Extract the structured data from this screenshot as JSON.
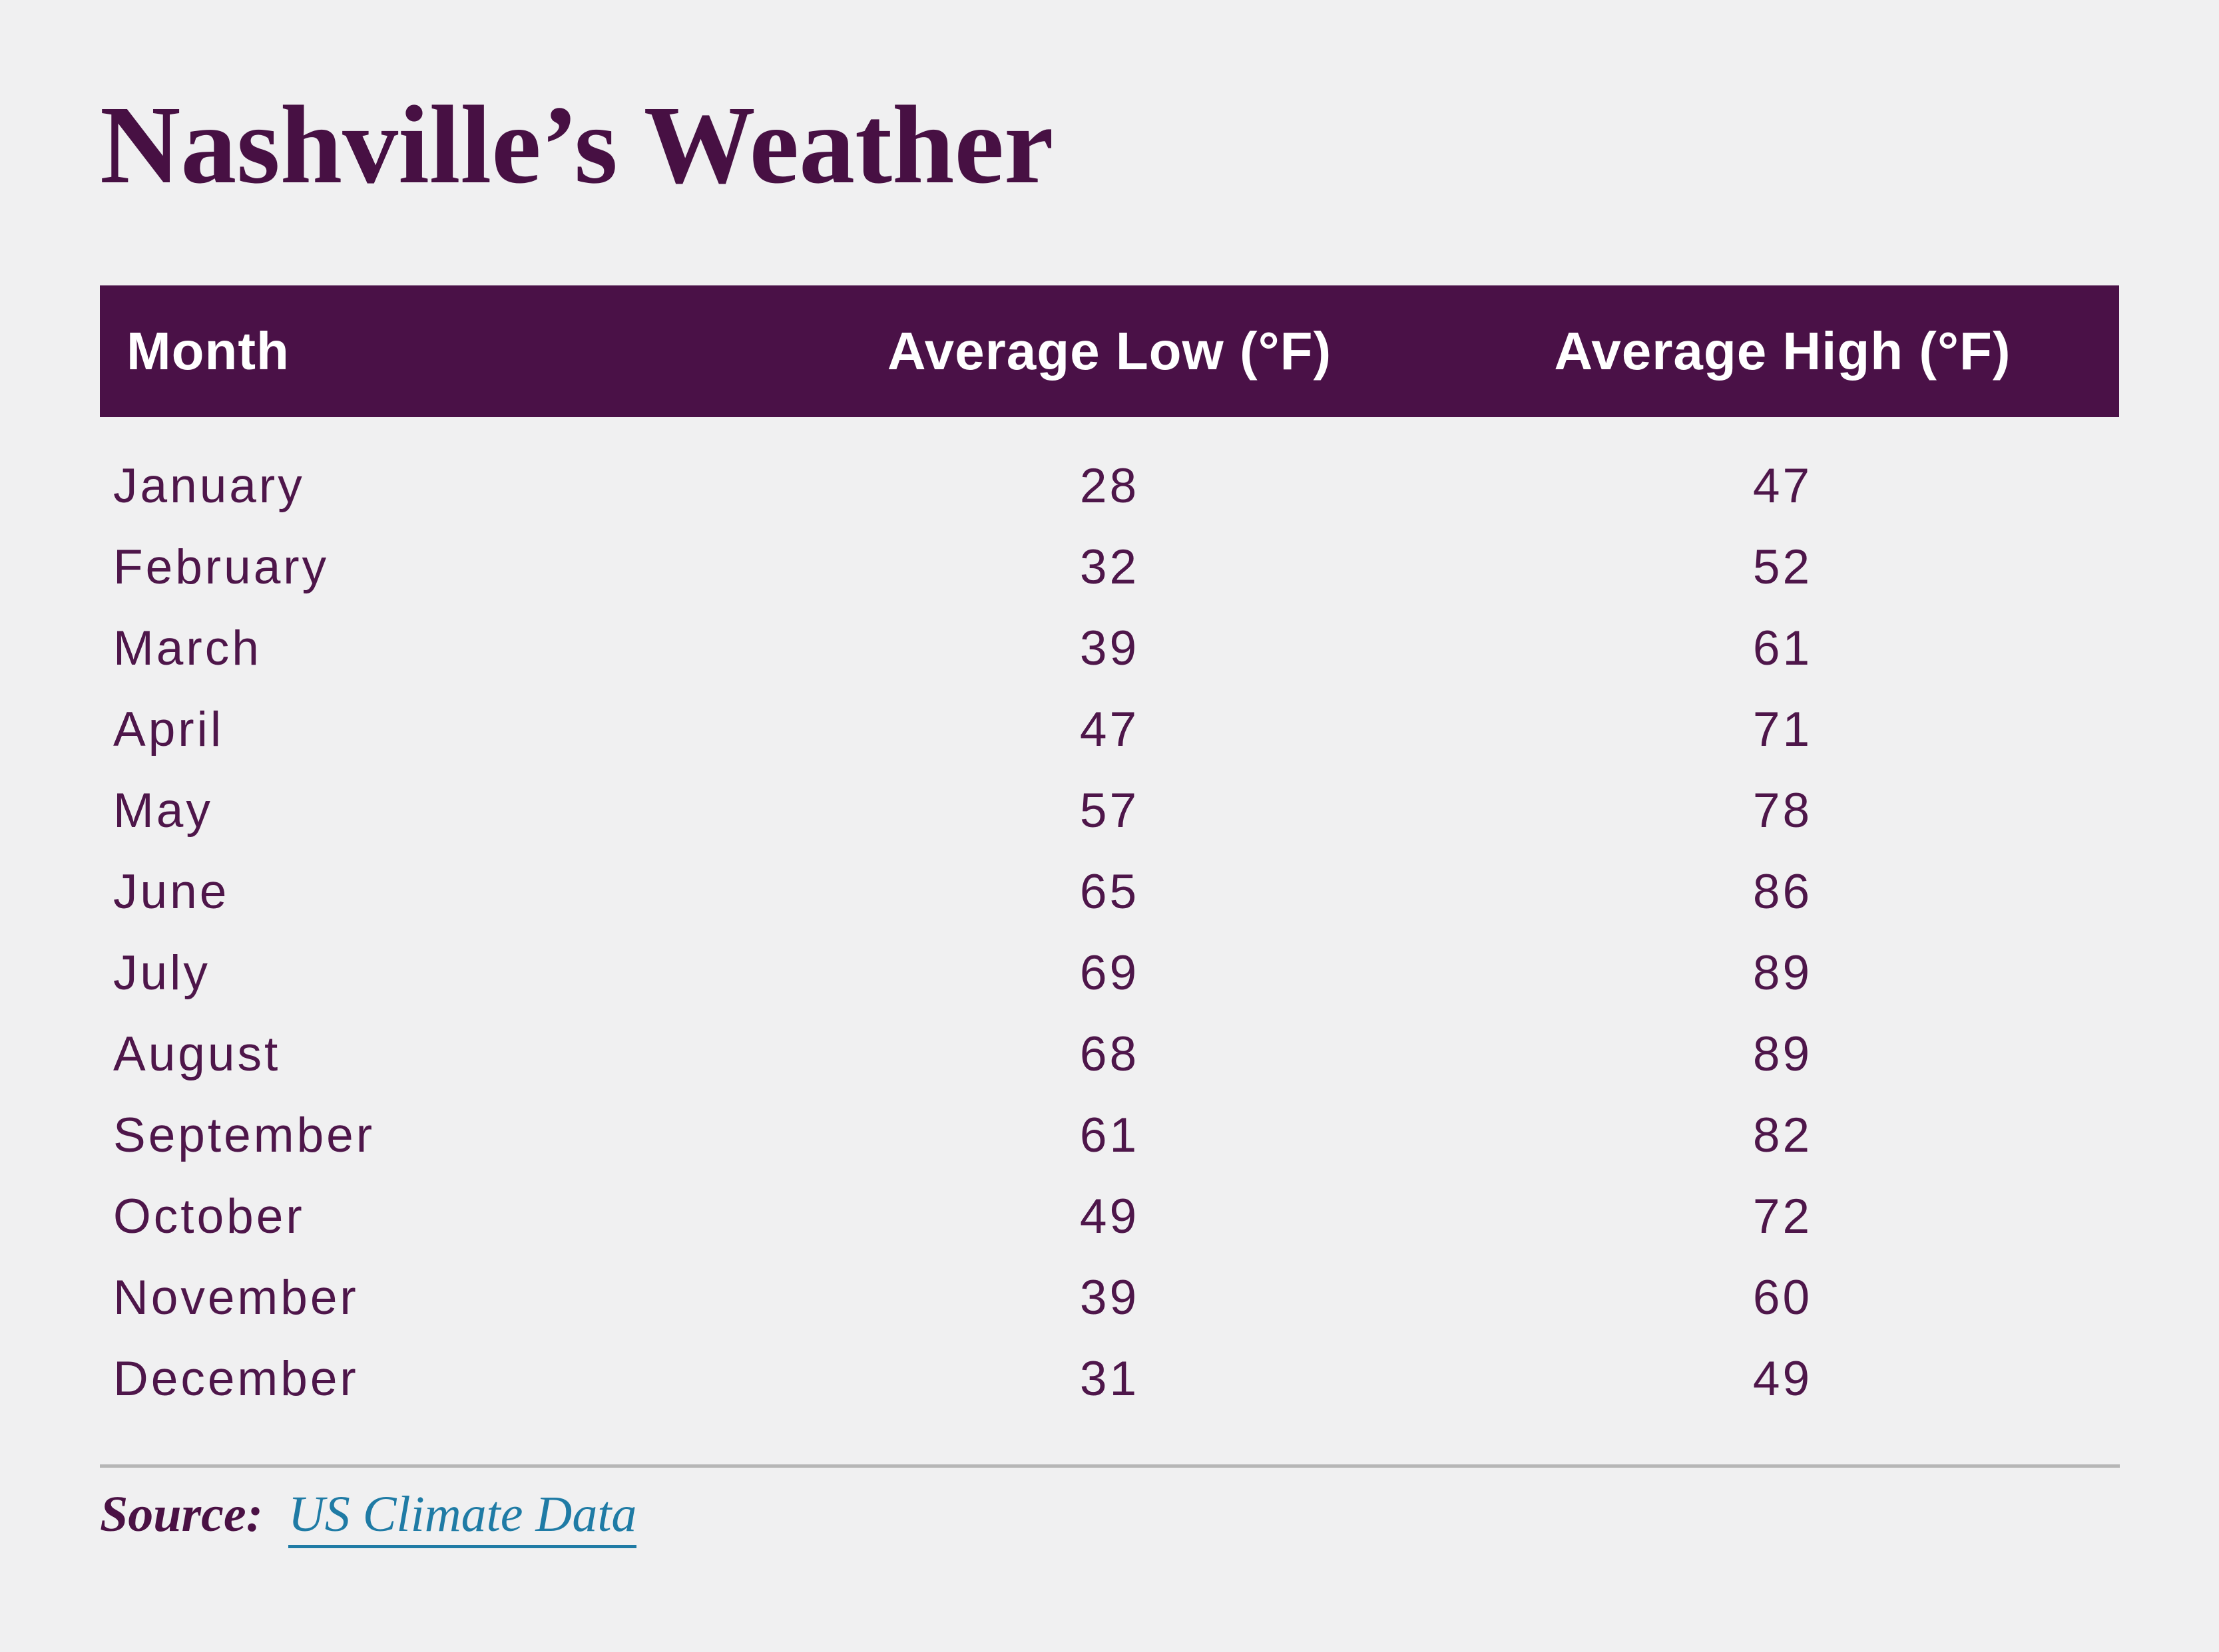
{
  "page": {
    "background": "#f0f0f1",
    "accent": "#4a1147"
  },
  "title": {
    "text": "Nashville’s Weather",
    "color": "#471043"
  },
  "table": {
    "header": {
      "background": "#4a1147",
      "text_color": "#ffffff",
      "columns": [
        "Month",
        "Average Low (°F)",
        "Average High (°F)"
      ]
    },
    "body_text_color": "#4e164a",
    "rows": [
      {
        "month": "January",
        "low": "28",
        "high": "47"
      },
      {
        "month": "February",
        "low": "32",
        "high": "52"
      },
      {
        "month": "March",
        "low": "39",
        "high": "61"
      },
      {
        "month": "April",
        "low": "47",
        "high": "71"
      },
      {
        "month": "May",
        "low": "57",
        "high": "78"
      },
      {
        "month": "June",
        "low": "65",
        "high": "86"
      },
      {
        "month": "July",
        "low": "69",
        "high": "89"
      },
      {
        "month": "August",
        "low": "68",
        "high": "89"
      },
      {
        "month": "September",
        "low": "61",
        "high": "82"
      },
      {
        "month": "October",
        "low": "49",
        "high": "72"
      },
      {
        "month": "November",
        "low": "39",
        "high": "60"
      },
      {
        "month": "December",
        "low": "31",
        "high": "49"
      }
    ]
  },
  "divider": {
    "color": "#b6b6b6"
  },
  "source": {
    "label": "Source:",
    "link_text": "US Climate Data",
    "label_color": "#4a1144",
    "link_color": "#1f7ba5"
  },
  "chart_data": {
    "type": "table",
    "title": "Nashville’s Weather",
    "columns": [
      "Month",
      "Average Low (°F)",
      "Average High (°F)"
    ],
    "categories": [
      "January",
      "February",
      "March",
      "April",
      "May",
      "June",
      "July",
      "August",
      "September",
      "October",
      "November",
      "December"
    ],
    "series": [
      {
        "name": "Average Low (°F)",
        "values": [
          28,
          32,
          39,
          47,
          57,
          65,
          69,
          68,
          61,
          49,
          39,
          31
        ]
      },
      {
        "name": "Average High (°F)",
        "values": [
          47,
          52,
          61,
          71,
          78,
          86,
          89,
          89,
          82,
          72,
          60,
          49
        ]
      }
    ],
    "source": "US Climate Data",
    "legend_position": "none",
    "grid": false
  }
}
